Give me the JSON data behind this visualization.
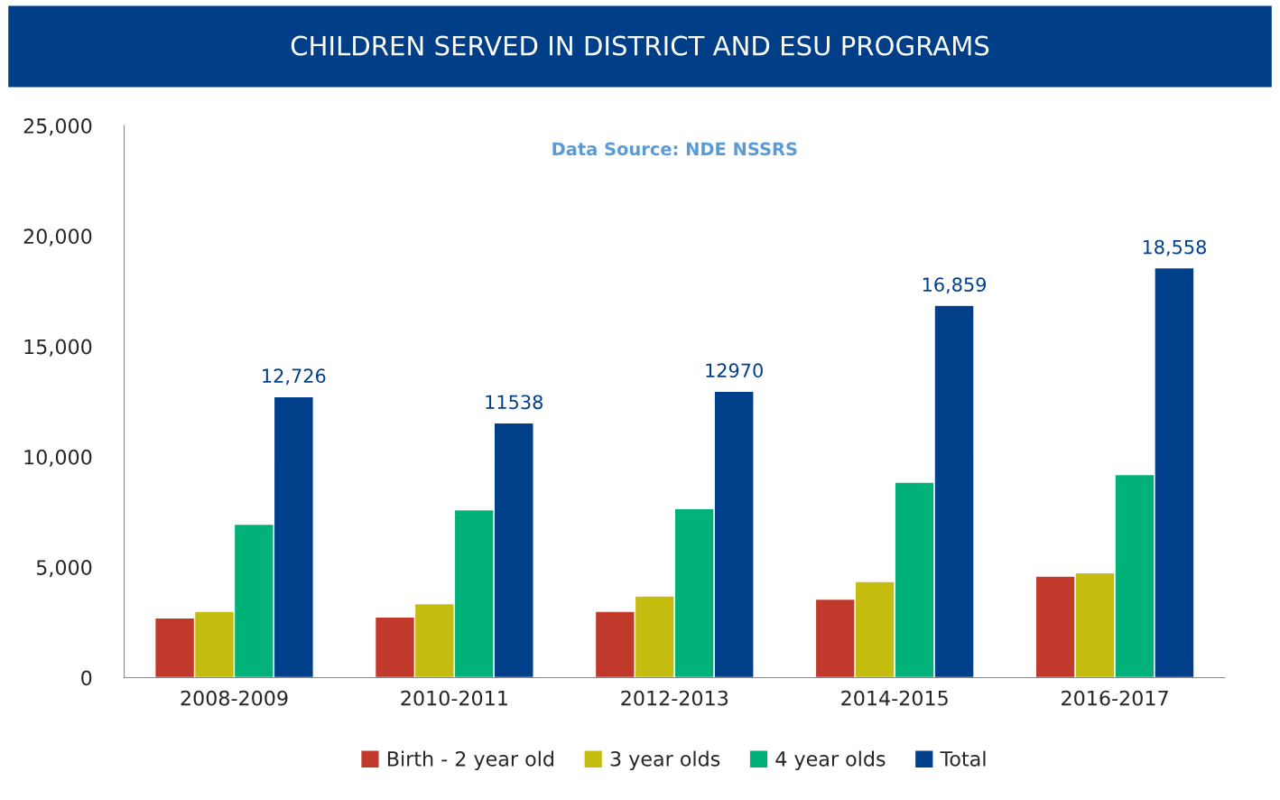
{
  "chart_data": {
    "type": "bar",
    "title": "CHILDREN SERVED IN DISTRICT AND ESU PROGRAMS",
    "annotations": [
      "Data Source: NDE NSSRS"
    ],
    "categories": [
      "2008-2009",
      "2010-2011",
      "2012-2013",
      "2014-2015",
      "2016-2017"
    ],
    "series": [
      {
        "name": "Birth - 2 year old",
        "color": "#c0392b",
        "values": [
          2700,
          2750,
          3000,
          3550,
          4600
        ]
      },
      {
        "name": "3 year olds",
        "color": "#c4bd0f",
        "values": [
          3000,
          3350,
          3700,
          4350,
          4750
        ]
      },
      {
        "name": "4 year olds",
        "color": "#00b27a",
        "values": [
          6950,
          7600,
          7650,
          8850,
          9200
        ]
      },
      {
        "name": "Total",
        "color": "#003f8a",
        "values": [
          12726,
          11538,
          12970,
          16859,
          18558
        ],
        "value_labels": [
          "12,726",
          "11538",
          "12970",
          "16,859",
          "18,558"
        ]
      }
    ],
    "ylim": [
      0,
      25000
    ],
    "yticks": [
      {
        "value": 0,
        "label": "0"
      },
      {
        "value": 5000,
        "label": "5,000"
      },
      {
        "value": 10000,
        "label": "10,000"
      },
      {
        "value": 15000,
        "label": "15,000"
      },
      {
        "value": 20000,
        "label": "20,000"
      },
      {
        "value": 25000,
        "label": "25,000"
      }
    ],
    "grid": false,
    "legend": "bottom"
  }
}
